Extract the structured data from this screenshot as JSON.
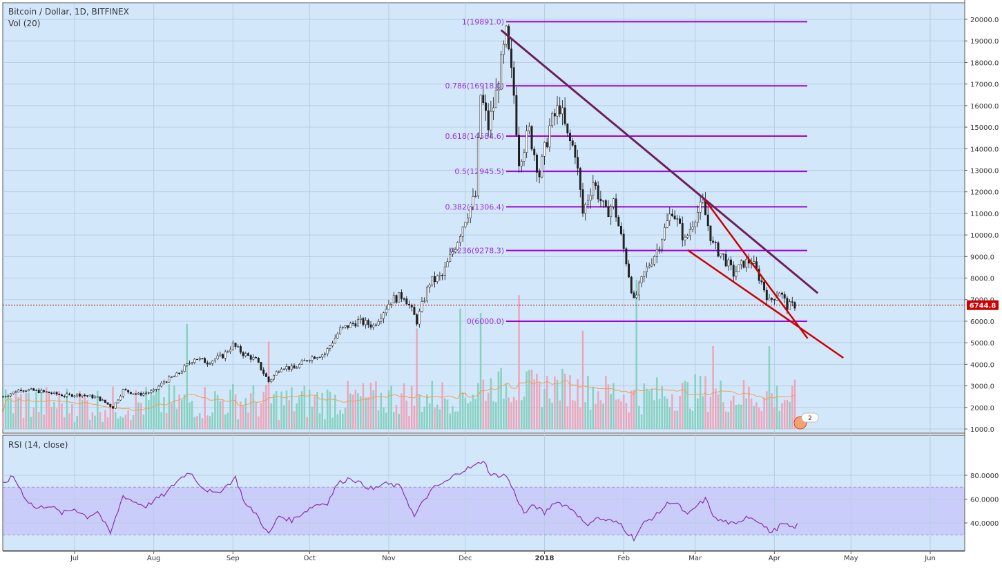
{
  "header": {
    "symbol_line": "Bitcoin / Dollar, 1D, BITFINEX",
    "volume_line": "Vol (20)",
    "rsi_line": "RSI (14, close)"
  },
  "colors": {
    "background": "#d3e7fb",
    "candle_up": "#ffffff",
    "candle_down": "#222222",
    "vol_up": "#7fcfba",
    "vol_down": "#f0a0b4",
    "vol_ma": "#f0a050",
    "fib_line": "#a100d4",
    "fib_label": "#9b30d9",
    "main_trendline": "#6e1f5a",
    "wedge_lines": "#cc0000",
    "price_line": "#cc0000",
    "rsi_line": "#8b2fa8",
    "rsi_band": "#c8c8f8"
  },
  "price_tag": "6744.8",
  "event_badge": "2",
  "chart_data": [
    {
      "type": "candlestick",
      "title": "Bitcoin / Dollar, 1D, BITFINEX",
      "x_ticks": [
        {
          "label": "Jul",
          "date": "2017-07-01"
        },
        {
          "label": "Aug",
          "date": "2017-08-01"
        },
        {
          "label": "Sep",
          "date": "2017-09-01"
        },
        {
          "label": "Oct",
          "date": "2017-10-01"
        },
        {
          "label": "Nov",
          "date": "2017-11-01"
        },
        {
          "label": "Dec",
          "date": "2017-12-01"
        },
        {
          "label": "2018",
          "date": "2018-01-01"
        },
        {
          "label": "Feb",
          "date": "2018-02-01"
        },
        {
          "label": "Mar",
          "date": "2018-03-01"
        },
        {
          "label": "Apr",
          "date": "2018-04-01"
        },
        {
          "label": "May",
          "date": "2018-05-01"
        },
        {
          "label": "Jun",
          "date": "2018-06-01"
        }
      ],
      "y_ticks": [
        "1000.0",
        "2000.0",
        "3000.0",
        "4000.0",
        "5000.0",
        "6000.0",
        "7000.0",
        "8000.0",
        "9000.0",
        "10000.0",
        "11000.0",
        "12000.0",
        "13000.0",
        "14000.0",
        "15000.0",
        "16000.0",
        "17000.0",
        "18000.0",
        "19000.0",
        "20000.0"
      ],
      "ylim": [
        700,
        20300
      ],
      "last_price": 6744.8,
      "close_series": [
        [
          "2017-06-03",
          2500
        ],
        [
          "2017-06-10",
          2850
        ],
        [
          "2017-06-20",
          2700
        ],
        [
          "2017-06-27",
          2550
        ],
        [
          "2017-07-03",
          2600
        ],
        [
          "2017-07-10",
          2450
        ],
        [
          "2017-07-16",
          2000
        ],
        [
          "2017-07-20",
          2800
        ],
        [
          "2017-07-26",
          2600
        ],
        [
          "2017-08-01",
          2750
        ],
        [
          "2017-08-05",
          3200
        ],
        [
          "2017-08-10",
          3500
        ],
        [
          "2017-08-17",
          4300
        ],
        [
          "2017-08-22",
          4100
        ],
        [
          "2017-08-28",
          4400
        ],
        [
          "2017-09-01",
          4900
        ],
        [
          "2017-09-05",
          4500
        ],
        [
          "2017-09-10",
          4200
        ],
        [
          "2017-09-15",
          3200
        ],
        [
          "2017-09-20",
          3900
        ],
        [
          "2017-09-25",
          3800
        ],
        [
          "2017-10-01",
          4300
        ],
        [
          "2017-10-07",
          4500
        ],
        [
          "2017-10-13",
          5600
        ],
        [
          "2017-10-20",
          6000
        ],
        [
          "2017-10-26",
          5800
        ],
        [
          "2017-11-02",
          7000
        ],
        [
          "2017-11-07",
          7200
        ],
        [
          "2017-11-12",
          6000
        ],
        [
          "2017-11-17",
          7800
        ],
        [
          "2017-11-22",
          8100
        ],
        [
          "2017-11-28",
          9800
        ],
        [
          "2017-12-01",
          10800
        ],
        [
          "2017-12-05",
          11800
        ],
        [
          "2017-12-07",
          16500
        ],
        [
          "2017-12-10",
          15000
        ],
        [
          "2017-12-13",
          16500
        ],
        [
          "2017-12-17",
          19200
        ],
        [
          "2017-12-20",
          16500
        ],
        [
          "2017-12-22",
          13500
        ],
        [
          "2017-12-26",
          14800
        ],
        [
          "2017-12-30",
          12800
        ],
        [
          "2018-01-03",
          15000
        ],
        [
          "2018-01-07",
          16000
        ],
        [
          "2018-01-10",
          14500
        ],
        [
          "2018-01-13",
          13900
        ],
        [
          "2018-01-16",
          11000
        ],
        [
          "2018-01-20",
          12500
        ],
        [
          "2018-01-25",
          11000
        ],
        [
          "2018-01-28",
          11500
        ],
        [
          "2018-02-02",
          8800
        ],
        [
          "2018-02-05",
          6900
        ],
        [
          "2018-02-09",
          8200
        ],
        [
          "2018-02-14",
          9300
        ],
        [
          "2018-02-20",
          11200
        ],
        [
          "2018-02-25",
          9700
        ],
        [
          "2018-03-01",
          10900
        ],
        [
          "2018-03-04",
          11400
        ],
        [
          "2018-03-08",
          9500
        ],
        [
          "2018-03-12",
          9000
        ],
        [
          "2018-03-16",
          8200
        ],
        [
          "2018-03-20",
          8700
        ],
        [
          "2018-03-23",
          8800
        ],
        [
          "2018-03-27",
          7800
        ],
        [
          "2018-03-30",
          6900
        ],
        [
          "2018-04-03",
          7400
        ],
        [
          "2018-04-06",
          6700
        ],
        [
          "2018-04-09",
          6744.8
        ]
      ],
      "fib_levels": [
        {
          "label": "1(19891.0)",
          "value": 19891.0
        },
        {
          "label": "0.786(16918.0)",
          "value": 16918.0
        },
        {
          "label": "0.618(14584.6)",
          "value": 14584.6
        },
        {
          "label": "0.5(12945.5)",
          "value": 12945.5
        },
        {
          "label": "0.382(11306.4)",
          "value": 11306.4
        },
        {
          "label": "0.236(9278.3)",
          "value": 9278.3
        },
        {
          "label": "0(6000.0)",
          "value": 6000.0
        }
      ],
      "trendlines": [
        {
          "name": "",
          "points": [
            [
              "2017-12-15",
              19500
            ],
            [
              "2018-04-18",
              7300
            ]
          ]
        },
        {
          "name": "",
          "points": [
            [
              "2018-03-05",
              11600
            ],
            [
              "2018-04-14",
              5200
            ]
          ]
        },
        {
          "name": "",
          "points": [
            [
              "2018-02-26",
              9300
            ],
            [
              "2018-04-28",
              4300
            ]
          ]
        }
      ]
    },
    {
      "type": "bar",
      "title": "Vol (20)",
      "note_series": [
        [
          "2017-08-14",
          5500
        ],
        [
          "2017-09-15",
          4700
        ],
        [
          "2017-11-12",
          5300
        ],
        [
          "2017-11-29",
          6200
        ],
        [
          "2017-12-07",
          6000
        ],
        [
          "2017-12-22",
          6800
        ],
        [
          "2018-01-16",
          5200
        ],
        [
          "2018-02-06",
          7500
        ],
        [
          "2018-03-08",
          4500
        ],
        [
          "2018-03-30",
          4500
        ]
      ]
    },
    {
      "type": "line",
      "title": "RSI (14, close)",
      "y_ticks": [
        "40.0000",
        "60.0000",
        "80.0000"
      ],
      "band": [
        30,
        70
      ],
      "ylim": [
        23,
        95
      ],
      "series": [
        {
          "name": "",
          "points": [
            [
              "2017-06-03",
              73
            ],
            [
              "2017-06-07",
              79
            ],
            [
              "2017-06-12",
              60
            ],
            [
              "2017-06-16",
              52
            ],
            [
              "2017-06-21",
              55
            ],
            [
              "2017-06-26",
              48
            ],
            [
              "2017-07-01",
              52
            ],
            [
              "2017-07-06",
              45
            ],
            [
              "2017-07-10",
              50
            ],
            [
              "2017-07-15",
              31
            ],
            [
              "2017-07-20",
              63
            ],
            [
              "2017-07-24",
              58
            ],
            [
              "2017-07-29",
              54
            ],
            [
              "2017-08-02",
              60
            ],
            [
              "2017-08-06",
              65
            ],
            [
              "2017-08-10",
              75
            ],
            [
              "2017-08-15",
              83
            ],
            [
              "2017-08-20",
              70
            ],
            [
              "2017-08-25",
              64
            ],
            [
              "2017-08-30",
              72
            ],
            [
              "2017-09-02",
              78
            ],
            [
              "2017-09-06",
              55
            ],
            [
              "2017-09-10",
              48
            ],
            [
              "2017-09-15",
              30
            ],
            [
              "2017-09-19",
              46
            ],
            [
              "2017-09-24",
              42
            ],
            [
              "2017-09-28",
              48
            ],
            [
              "2017-10-03",
              55
            ],
            [
              "2017-10-08",
              57
            ],
            [
              "2017-10-12",
              73
            ],
            [
              "2017-10-17",
              78
            ],
            [
              "2017-10-21",
              73
            ],
            [
              "2017-10-26",
              68
            ],
            [
              "2017-10-30",
              73
            ],
            [
              "2017-11-02",
              72
            ],
            [
              "2017-11-06",
              70
            ],
            [
              "2017-11-11",
              45
            ],
            [
              "2017-11-15",
              60
            ],
            [
              "2017-11-19",
              70
            ],
            [
              "2017-11-24",
              75
            ],
            [
              "2017-11-28",
              82
            ],
            [
              "2017-12-01",
              85
            ],
            [
              "2017-12-05",
              88
            ],
            [
              "2017-12-08",
              93
            ],
            [
              "2017-12-11",
              80
            ],
            [
              "2017-12-17",
              80
            ],
            [
              "2017-12-21",
              62
            ],
            [
              "2017-12-24",
              48
            ],
            [
              "2017-12-28",
              55
            ],
            [
              "2018-01-01",
              48
            ],
            [
              "2018-01-05",
              58
            ],
            [
              "2018-01-09",
              55
            ],
            [
              "2018-01-13",
              50
            ],
            [
              "2018-01-17",
              38
            ],
            [
              "2018-01-21",
              44
            ],
            [
              "2018-01-26",
              42
            ],
            [
              "2018-01-31",
              39
            ],
            [
              "2018-02-02",
              33
            ],
            [
              "2018-02-05",
              27
            ],
            [
              "2018-02-09",
              40
            ],
            [
              "2018-02-14",
              47
            ],
            [
              "2018-02-19",
              58
            ],
            [
              "2018-02-22",
              56
            ],
            [
              "2018-02-26",
              46
            ],
            [
              "2018-03-01",
              53
            ],
            [
              "2018-03-05",
              60
            ],
            [
              "2018-03-09",
              43
            ],
            [
              "2018-03-13",
              41
            ],
            [
              "2018-03-17",
              38
            ],
            [
              "2018-03-21",
              46
            ],
            [
              "2018-03-25",
              43
            ],
            [
              "2018-03-29",
              35
            ],
            [
              "2018-03-31",
              32
            ],
            [
              "2018-04-04",
              39
            ],
            [
              "2018-04-08",
              36
            ],
            [
              "2018-04-10",
              38
            ]
          ]
        }
      ]
    }
  ]
}
